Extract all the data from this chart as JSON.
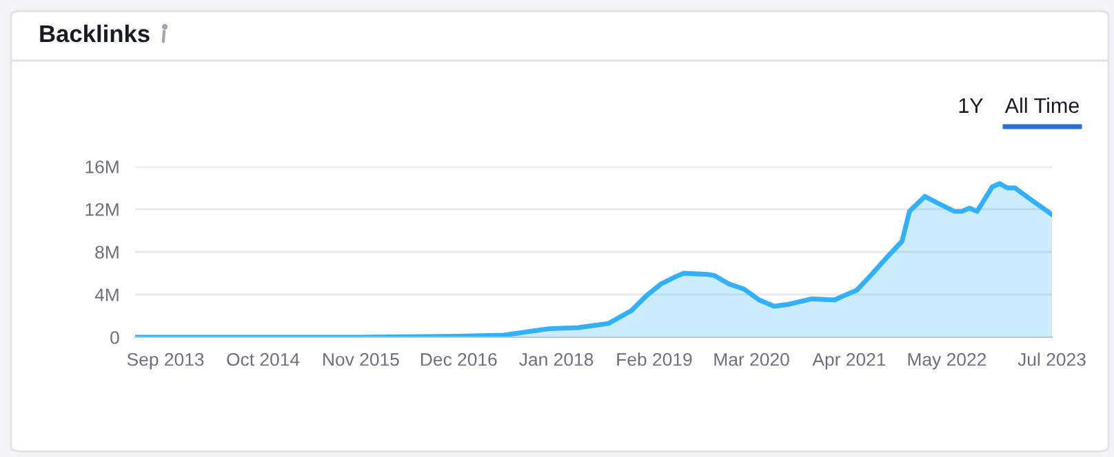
{
  "chart_data": {
    "type": "area",
    "title": "Backlinks",
    "annotations": [
      "1Y",
      "All Time"
    ],
    "x": [
      "2013-05",
      "2014-09",
      "2015-11",
      "2016-12",
      "2017-06",
      "2017-10",
      "2017-12",
      "2018-04",
      "2018-08",
      "2018-11",
      "2019-01",
      "2019-03",
      "2019-05",
      "2019-06",
      "2019-09",
      "2019-10",
      "2019-12",
      "2020-02",
      "2020-04",
      "2020-06",
      "2020-08",
      "2020-11",
      "2021-02",
      "2021-03",
      "2021-05",
      "2021-07",
      "2021-09",
      "2021-11",
      "2021-12",
      "2022-02",
      "2022-04",
      "2022-06",
      "2022-07",
      "2022-08",
      "2022-09",
      "2022-11",
      "2022-12",
      "2023-01",
      "2023-02",
      "2023-04",
      "2023-07"
    ],
    "series": [
      {
        "color": "#33b0fa",
        "values": [
          0,
          0,
          0,
          0.1,
          0.2,
          0.6,
          0.8,
          0.9,
          1.3,
          2.5,
          3.9,
          5.0,
          5.7,
          6.0,
          5.9,
          5.8,
          5.0,
          4.5,
          3.5,
          2.9,
          3.1,
          3.6,
          3.5,
          3.8,
          4.4,
          5.9,
          7.5,
          9.0,
          11.8,
          13.2,
          12.5,
          11.8,
          11.8,
          12.1,
          11.8,
          14.1,
          14.4,
          14.0,
          14.0,
          13.0,
          11.5
        ]
      }
    ],
    "xlim": [
      "2013-05",
      "2023-07"
    ],
    "xticks": [
      {
        "value": "2013-09",
        "label": "Sep 2013"
      },
      {
        "value": "2014-10",
        "label": "Oct 2014"
      },
      {
        "value": "2015-11",
        "label": "Nov 2015"
      },
      {
        "value": "2016-12",
        "label": "Dec 2016"
      },
      {
        "value": "2018-01",
        "label": "Jan 2018"
      },
      {
        "value": "2019-02",
        "label": "Feb 2019"
      },
      {
        "value": "2020-03",
        "label": "Mar 2020"
      },
      {
        "value": "2021-04",
        "label": "Apr 2021"
      },
      {
        "value": "2022-05",
        "label": "May 2022"
      },
      {
        "value": "2023-07",
        "label": "Jul 2023"
      }
    ],
    "ylim": [
      0,
      16
    ],
    "yticks": [
      {
        "value": 0,
        "label": "0"
      },
      {
        "value": 4,
        "label": "4M"
      },
      {
        "value": 8,
        "label": "8M"
      },
      {
        "value": 12,
        "label": "12M"
      },
      {
        "value": 16,
        "label": "16M"
      }
    ],
    "grid": "y",
    "marker": "none",
    "line_style": "solid"
  }
}
